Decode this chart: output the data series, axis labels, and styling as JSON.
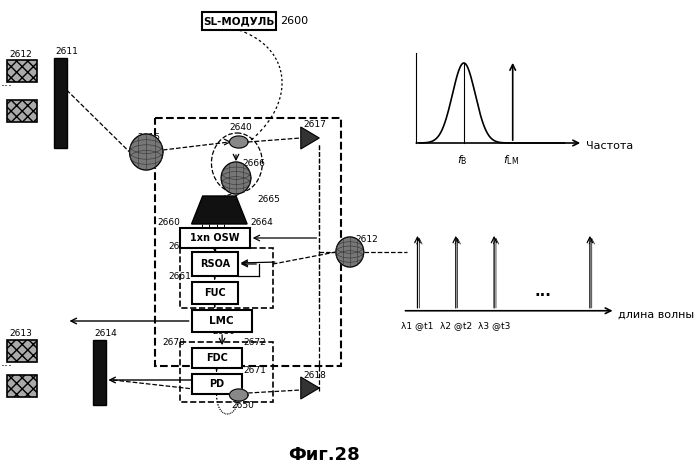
{
  "bg_color": "#ffffff",
  "title": "Фиг.28",
  "sl_label": "SL-МОДУЛЬ",
  "sl_num": "2600",
  "freq_axis_label": "Частота",
  "wl_axis_label": "длина волны",
  "wl_spike_labels": [
    "λ1 @t1",
    "λ2 @t2",
    "λ3 @t3"
  ]
}
